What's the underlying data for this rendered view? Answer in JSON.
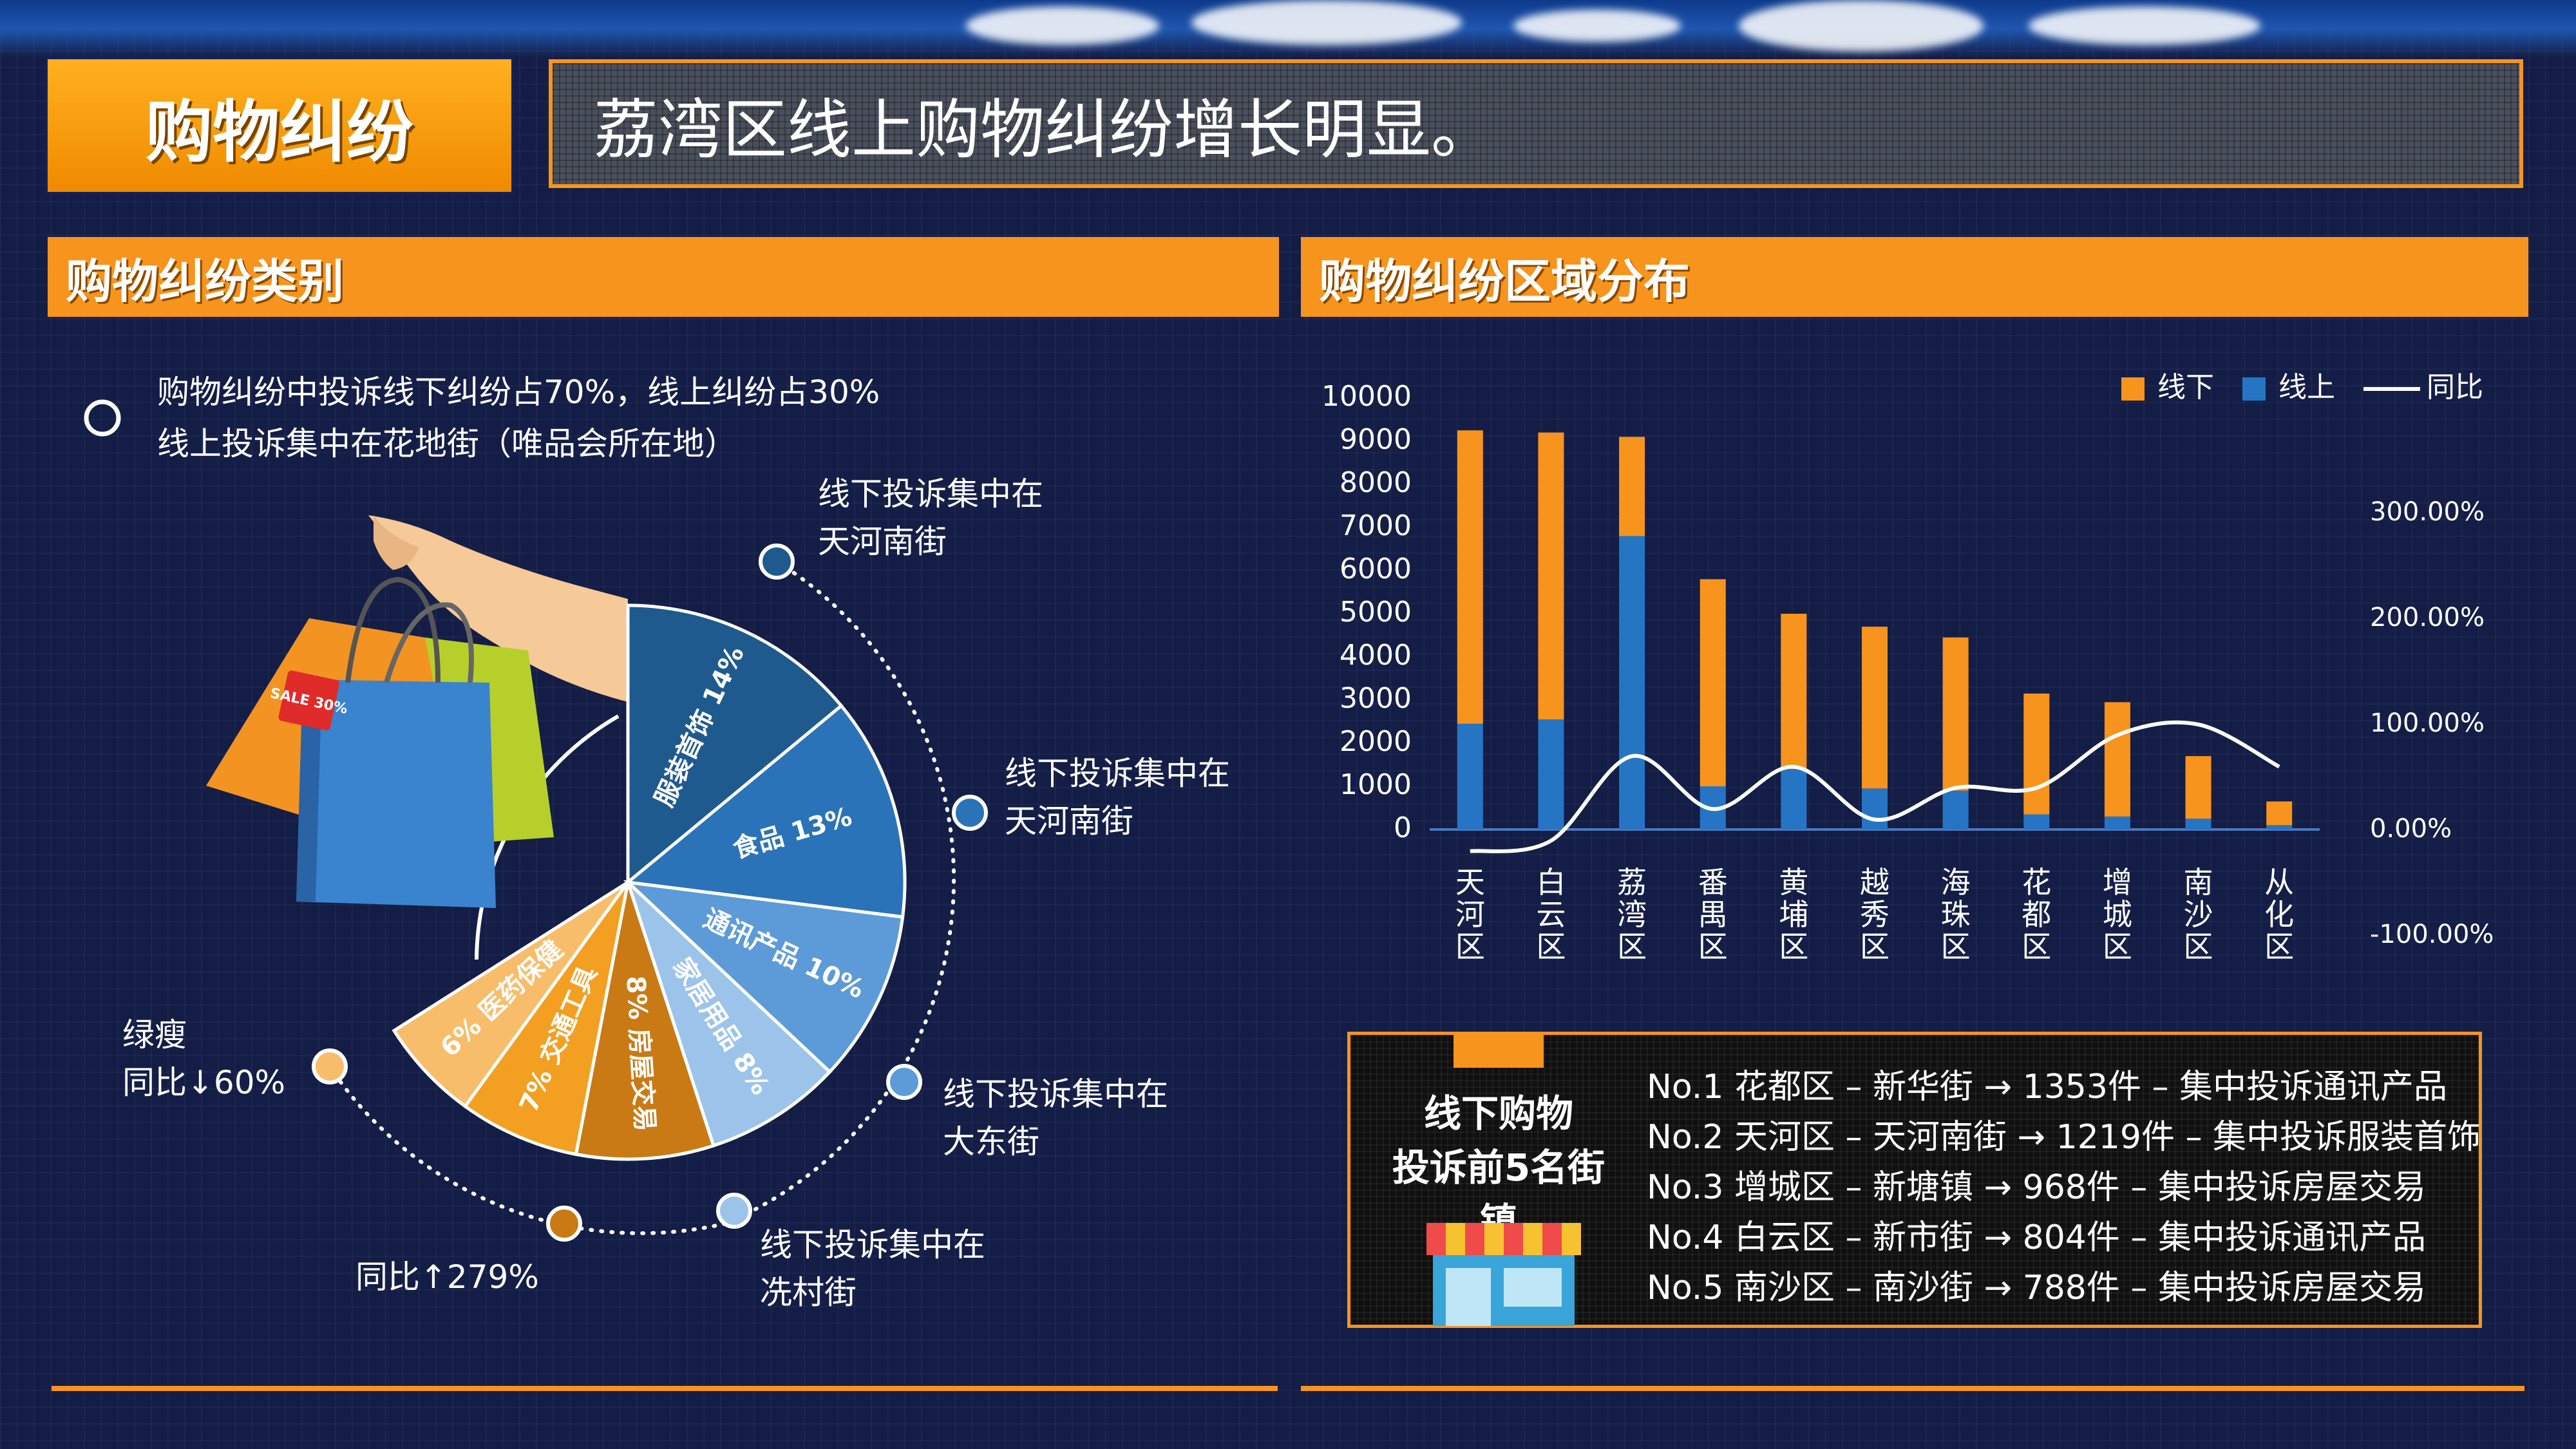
{
  "header": {
    "badge": "购物纠纷",
    "headline": "荔湾区线上购物纠纷增长明显。"
  },
  "left_panel": {
    "title": "购物纠纷类别",
    "summary_line1": "购物纠纷中投诉线下纠纷占70%，线上纠纷占30%",
    "summary_line2": "线上投诉集中在花地街（唯品会所在地）",
    "callouts": [
      {
        "line1": "线下投诉集中在",
        "line2": "天河南街"
      },
      {
        "line1": "线下投诉集中在",
        "line2": "天河南街"
      },
      {
        "line1": "线下投诉集中在",
        "line2": "大东街"
      },
      {
        "line1": "线下投诉集中在",
        "line2": "冼村街"
      },
      {
        "line1": "同比↑279%",
        "line2": ""
      },
      {
        "line1": "绿瘦",
        "line2": "同比↓60%"
      }
    ],
    "pie": [
      {
        "label": "服装首饰 14%",
        "value": 14,
        "color": "#1f5a8f"
      },
      {
        "label": "食品 13%",
        "value": 13,
        "color": "#2a73b8"
      },
      {
        "label": "通讯产品 10%",
        "value": 10,
        "color": "#5d9bd8"
      },
      {
        "label": "家居用品 8%",
        "value": 8,
        "color": "#9cc4ea"
      },
      {
        "label": "8% 房屋交易",
        "value": 8,
        "color": "#c97a14"
      },
      {
        "label": "7% 交通工具",
        "value": 7,
        "color": "#f29f22"
      },
      {
        "label": "6% 医药保健",
        "value": 6,
        "color": "#f8bd6a"
      }
    ],
    "dot_colors": [
      "#1f5a8f",
      "#2a73b8",
      "#5d9bd8",
      "#9cc4ea",
      "#c97a14",
      "#f8bd6a"
    ],
    "sale_tag": "SALE 30%"
  },
  "right_panel": {
    "title": "购物纠纷区域分布",
    "chart_data": {
      "type": "bar",
      "stacked": true,
      "categories": [
        "天河区",
        "白云区",
        "荔湾区",
        "番禺区",
        "黄埔区",
        "越秀区",
        "海珠区",
        "花都区",
        "增城区",
        "南沙区",
        "从化区"
      ],
      "series": [
        {
          "name": "线上",
          "color": "#2575c4",
          "values": [
            2450,
            2550,
            6800,
            1000,
            1400,
            950,
            900,
            350,
            300,
            250,
            100
          ]
        },
        {
          "name": "线下",
          "color": "#f7941d",
          "values": [
            6800,
            6650,
            2300,
            4800,
            3600,
            3750,
            3550,
            2800,
            2650,
            1450,
            550
          ]
        },
        {
          "name": "同比",
          "color": "#ffffff",
          "axis": "right",
          "values": [
            -20,
            -10,
            70,
            20,
            60,
            10,
            40,
            40,
            90,
            100,
            60
          ]
        }
      ],
      "y_left": {
        "ylim": [
          0,
          10000
        ],
        "ticks": [
          "0",
          "1000",
          "2000",
          "3000",
          "4000",
          "5000",
          "6000",
          "7000",
          "8000",
          "9000",
          "10000"
        ]
      },
      "y_right": {
        "ylim": [
          -100,
          300
        ],
        "ticks": [
          "-100.00%",
          "0.00%",
          "100.00%",
          "200.00%",
          "300.00%"
        ]
      },
      "legend": [
        "线下",
        "线上",
        "同比"
      ],
      "legend_position": "top-right",
      "grid": false
    },
    "top5": {
      "title_line1": "线下购物",
      "title_line2": "投诉前5名街镇",
      "items": [
        "No.1 花都区 – 新华街 → 1353件 – 集中投诉通讯产品",
        "No.2 天河区 – 天河南街 → 1219件 – 集中投诉服装首饰",
        "No.3 增城区 – 新塘镇 → 968件 – 集中投诉房屋交易",
        "No.4 白云区 – 新市街 → 804件 – 集中投诉通讯产品",
        "No.5 南沙区 – 南沙街 → 788件 – 集中投诉房屋交易"
      ]
    }
  },
  "colors": {
    "accent": "#f7941d",
    "background": "#141d46"
  }
}
